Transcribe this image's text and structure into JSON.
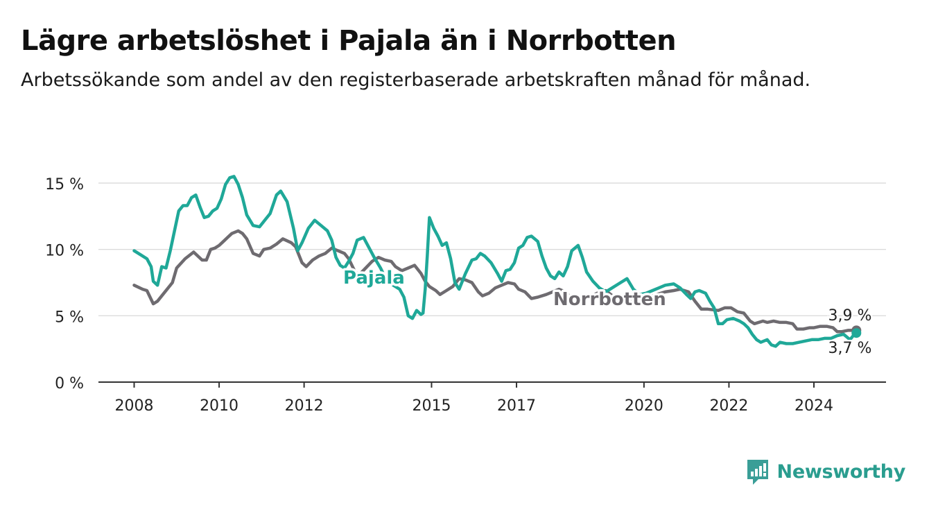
{
  "title": "Lägre arbetslöshet i Pajala än i Norrbotten",
  "subtitle": "Arbetssökande som andel av den registerbaserade arbetskraften månad för månad.",
  "brand": {
    "name": "Newsworthy",
    "icon": "newsworthy-logo-icon",
    "color": "#3a9e97"
  },
  "chart_data": {
    "type": "line",
    "y_tick_labels": [
      "0 %",
      "5 %",
      "10 %",
      "15 %"
    ],
    "y_ticks": [
      0,
      5,
      10,
      15
    ],
    "x_tick_labels": [
      "2008",
      "2010",
      "2012",
      "2015",
      "2017",
      "2020",
      "2022",
      "2024"
    ],
    "x_ticks": [
      2008,
      2010,
      2012,
      2015,
      2017,
      2020,
      2022,
      2024
    ],
    "xlim": [
      2007.55,
      2025.7
    ],
    "ylim": [
      0,
      15.5
    ],
    "grid": true,
    "legend": "inline labels",
    "series": [
      {
        "name": "Norrbotten",
        "color": "#6e6b70",
        "end_label": "3,9 %",
        "points": [
          [
            2008.0,
            7.3
          ],
          [
            2008.2,
            7.0
          ],
          [
            2008.3,
            6.9
          ],
          [
            2008.45,
            5.9
          ],
          [
            2008.55,
            6.1
          ],
          [
            2008.7,
            6.7
          ],
          [
            2008.9,
            7.5
          ],
          [
            2009.0,
            8.6
          ],
          [
            2009.2,
            9.3
          ],
          [
            2009.4,
            9.8
          ],
          [
            2009.6,
            9.2
          ],
          [
            2009.7,
            9.2
          ],
          [
            2009.8,
            10.0
          ],
          [
            2009.9,
            10.1
          ],
          [
            2010.0,
            10.3
          ],
          [
            2010.1,
            10.6
          ],
          [
            2010.2,
            10.9
          ],
          [
            2010.3,
            11.2
          ],
          [
            2010.45,
            11.4
          ],
          [
            2010.55,
            11.2
          ],
          [
            2010.65,
            10.8
          ],
          [
            2010.8,
            9.7
          ],
          [
            2010.95,
            9.5
          ],
          [
            2011.05,
            10.0
          ],
          [
            2011.2,
            10.1
          ],
          [
            2011.35,
            10.4
          ],
          [
            2011.5,
            10.8
          ],
          [
            2011.7,
            10.5
          ],
          [
            2011.8,
            10.2
          ],
          [
            2011.95,
            9.0
          ],
          [
            2012.05,
            8.7
          ],
          [
            2012.2,
            9.2
          ],
          [
            2012.35,
            9.5
          ],
          [
            2012.5,
            9.7
          ],
          [
            2012.65,
            10.1
          ],
          [
            2012.8,
            9.9
          ],
          [
            2012.95,
            9.7
          ],
          [
            2013.05,
            9.3
          ],
          [
            2013.2,
            8.3
          ],
          [
            2013.3,
            8.1
          ],
          [
            2013.45,
            8.6
          ],
          [
            2013.6,
            9.1
          ],
          [
            2013.75,
            9.4
          ],
          [
            2013.9,
            9.2
          ],
          [
            2014.05,
            9.1
          ],
          [
            2014.15,
            8.7
          ],
          [
            2014.3,
            8.4
          ],
          [
            2014.45,
            8.6
          ],
          [
            2014.6,
            8.8
          ],
          [
            2014.75,
            8.2
          ],
          [
            2014.85,
            7.6
          ],
          [
            2014.95,
            7.2
          ],
          [
            2015.1,
            6.9
          ],
          [
            2015.2,
            6.6
          ],
          [
            2015.35,
            6.9
          ],
          [
            2015.5,
            7.2
          ],
          [
            2015.65,
            7.8
          ],
          [
            2015.8,
            7.7
          ],
          [
            2015.95,
            7.5
          ],
          [
            2016.1,
            6.8
          ],
          [
            2016.2,
            6.5
          ],
          [
            2016.35,
            6.7
          ],
          [
            2016.5,
            7.1
          ],
          [
            2016.65,
            7.3
          ],
          [
            2016.8,
            7.5
          ],
          [
            2016.95,
            7.4
          ],
          [
            2017.05,
            7.0
          ],
          [
            2017.2,
            6.8
          ],
          [
            2017.35,
            6.3
          ],
          [
            2017.5,
            6.4
          ],
          [
            2017.7,
            6.6
          ],
          [
            2017.85,
            6.8
          ],
          [
            2018.0,
            7.0
          ],
          [
            2018.15,
            6.8
          ],
          [
            2018.3,
            6.3
          ],
          [
            2018.5,
            6.2
          ],
          [
            2018.7,
            6.4
          ],
          [
            2018.9,
            6.7
          ],
          [
            2019.1,
            6.9
          ],
          [
            2019.3,
            6.4
          ],
          [
            2019.5,
            6.0
          ],
          [
            2019.7,
            6.2
          ],
          [
            2019.9,
            6.3
          ],
          [
            2020.1,
            6.4
          ],
          [
            2020.3,
            6.6
          ],
          [
            2020.5,
            6.8
          ],
          [
            2020.7,
            6.9
          ],
          [
            2020.85,
            7.0
          ],
          [
            2021.05,
            6.8
          ],
          [
            2021.2,
            6.1
          ],
          [
            2021.35,
            5.5
          ],
          [
            2021.5,
            5.5
          ],
          [
            2021.75,
            5.4
          ],
          [
            2021.9,
            5.6
          ],
          [
            2022.05,
            5.6
          ],
          [
            2022.2,
            5.3
          ],
          [
            2022.35,
            5.2
          ],
          [
            2022.5,
            4.6
          ],
          [
            2022.6,
            4.4
          ],
          [
            2022.8,
            4.6
          ],
          [
            2022.9,
            4.5
          ],
          [
            2023.05,
            4.6
          ],
          [
            2023.2,
            4.5
          ],
          [
            2023.35,
            4.5
          ],
          [
            2023.5,
            4.4
          ],
          [
            2023.6,
            4.0
          ],
          [
            2023.75,
            4.0
          ],
          [
            2023.9,
            4.1
          ],
          [
            2024.0,
            4.1
          ],
          [
            2024.15,
            4.2
          ],
          [
            2024.3,
            4.2
          ],
          [
            2024.45,
            4.1
          ],
          [
            2024.55,
            3.8
          ],
          [
            2024.65,
            3.8
          ],
          [
            2024.8,
            3.9
          ],
          [
            2025.0,
            3.9
          ]
        ]
      },
      {
        "name": "Pajala",
        "color": "#1fa898",
        "end_label": "3,7 %",
        "points": [
          [
            2008.0,
            9.9
          ],
          [
            2008.15,
            9.6
          ],
          [
            2008.3,
            9.3
          ],
          [
            2008.4,
            8.7
          ],
          [
            2008.45,
            7.6
          ],
          [
            2008.55,
            7.3
          ],
          [
            2008.65,
            8.7
          ],
          [
            2008.75,
            8.6
          ],
          [
            2008.85,
            9.9
          ],
          [
            2008.95,
            11.4
          ],
          [
            2009.05,
            12.9
          ],
          [
            2009.15,
            13.3
          ],
          [
            2009.25,
            13.3
          ],
          [
            2009.35,
            13.9
          ],
          [
            2009.45,
            14.1
          ],
          [
            2009.55,
            13.2
          ],
          [
            2009.65,
            12.4
          ],
          [
            2009.75,
            12.5
          ],
          [
            2009.85,
            12.9
          ],
          [
            2009.95,
            13.1
          ],
          [
            2010.05,
            13.8
          ],
          [
            2010.15,
            14.9
          ],
          [
            2010.25,
            15.4
          ],
          [
            2010.35,
            15.5
          ],
          [
            2010.45,
            14.9
          ],
          [
            2010.55,
            13.9
          ],
          [
            2010.65,
            12.6
          ],
          [
            2010.8,
            11.8
          ],
          [
            2010.95,
            11.7
          ],
          [
            2011.05,
            12.1
          ],
          [
            2011.2,
            12.7
          ],
          [
            2011.35,
            14.1
          ],
          [
            2011.45,
            14.4
          ],
          [
            2011.6,
            13.6
          ],
          [
            2011.75,
            11.6
          ],
          [
            2011.85,
            9.9
          ],
          [
            2011.95,
            10.5
          ],
          [
            2012.1,
            11.6
          ],
          [
            2012.25,
            12.2
          ],
          [
            2012.4,
            11.8
          ],
          [
            2012.55,
            11.4
          ],
          [
            2012.65,
            10.7
          ],
          [
            2012.75,
            9.4
          ],
          [
            2012.85,
            8.8
          ],
          [
            2012.95,
            8.6
          ],
          [
            2013.05,
            9.1
          ],
          [
            2013.15,
            9.7
          ],
          [
            2013.25,
            10.7
          ],
          [
            2013.4,
            10.9
          ],
          [
            2013.55,
            10.0
          ],
          [
            2013.65,
            9.4
          ],
          [
            2013.8,
            8.6
          ],
          [
            2013.95,
            7.6
          ],
          [
            2014.1,
            7.3
          ],
          [
            2014.25,
            7.0
          ],
          [
            2014.35,
            6.4
          ],
          [
            2014.45,
            5.0
          ],
          [
            2014.55,
            4.8
          ],
          [
            2014.65,
            5.4
          ],
          [
            2014.75,
            5.1
          ],
          [
            2014.8,
            5.2
          ],
          [
            2014.85,
            7.0
          ],
          [
            2014.9,
            9.5
          ],
          [
            2014.95,
            12.4
          ],
          [
            2015.05,
            11.6
          ],
          [
            2015.15,
            11.0
          ],
          [
            2015.25,
            10.3
          ],
          [
            2015.35,
            10.5
          ],
          [
            2015.45,
            9.3
          ],
          [
            2015.55,
            7.5
          ],
          [
            2015.65,
            7.0
          ],
          [
            2015.8,
            8.2
          ],
          [
            2015.95,
            9.2
          ],
          [
            2016.05,
            9.3
          ],
          [
            2016.15,
            9.7
          ],
          [
            2016.25,
            9.5
          ],
          [
            2016.4,
            9.0
          ],
          [
            2016.55,
            8.2
          ],
          [
            2016.65,
            7.6
          ],
          [
            2016.75,
            8.4
          ],
          [
            2016.85,
            8.5
          ],
          [
            2016.95,
            9.0
          ],
          [
            2017.05,
            10.1
          ],
          [
            2017.15,
            10.3
          ],
          [
            2017.25,
            10.9
          ],
          [
            2017.35,
            11.0
          ],
          [
            2017.5,
            10.6
          ],
          [
            2017.6,
            9.5
          ],
          [
            2017.7,
            8.6
          ],
          [
            2017.8,
            8.0
          ],
          [
            2017.9,
            7.8
          ],
          [
            2018.0,
            8.3
          ],
          [
            2018.1,
            8.0
          ],
          [
            2018.2,
            8.7
          ],
          [
            2018.3,
            9.9
          ],
          [
            2018.45,
            10.3
          ],
          [
            2018.55,
            9.4
          ],
          [
            2018.65,
            8.3
          ],
          [
            2018.8,
            7.6
          ],
          [
            2018.95,
            7.1
          ],
          [
            2019.1,
            6.8
          ],
          [
            2019.25,
            7.1
          ],
          [
            2019.45,
            7.5
          ],
          [
            2019.6,
            7.8
          ],
          [
            2019.75,
            7.0
          ],
          [
            2019.9,
            6.6
          ],
          [
            2020.05,
            6.7
          ],
          [
            2020.2,
            6.9
          ],
          [
            2020.35,
            7.1
          ],
          [
            2020.5,
            7.3
          ],
          [
            2020.7,
            7.4
          ],
          [
            2020.85,
            7.1
          ],
          [
            2021.0,
            6.6
          ],
          [
            2021.1,
            6.3
          ],
          [
            2021.2,
            6.8
          ],
          [
            2021.3,
            6.9
          ],
          [
            2021.45,
            6.7
          ],
          [
            2021.55,
            6.1
          ],
          [
            2021.65,
            5.6
          ],
          [
            2021.75,
            4.4
          ],
          [
            2021.85,
            4.4
          ],
          [
            2021.95,
            4.7
          ],
          [
            2022.1,
            4.8
          ],
          [
            2022.25,
            4.6
          ],
          [
            2022.35,
            4.4
          ],
          [
            2022.45,
            4.1
          ],
          [
            2022.55,
            3.6
          ],
          [
            2022.65,
            3.2
          ],
          [
            2022.75,
            3.0
          ],
          [
            2022.9,
            3.2
          ],
          [
            2023.0,
            2.8
          ],
          [
            2023.1,
            2.7
          ],
          [
            2023.2,
            3.0
          ],
          [
            2023.35,
            2.9
          ],
          [
            2023.5,
            2.9
          ],
          [
            2023.65,
            3.0
          ],
          [
            2023.8,
            3.1
          ],
          [
            2023.95,
            3.2
          ],
          [
            2024.1,
            3.2
          ],
          [
            2024.25,
            3.3
          ],
          [
            2024.4,
            3.3
          ],
          [
            2024.55,
            3.5
          ],
          [
            2024.7,
            3.6
          ],
          [
            2024.85,
            3.2
          ],
          [
            2024.95,
            3.6
          ],
          [
            2025.0,
            3.7
          ]
        ]
      }
    ]
  }
}
